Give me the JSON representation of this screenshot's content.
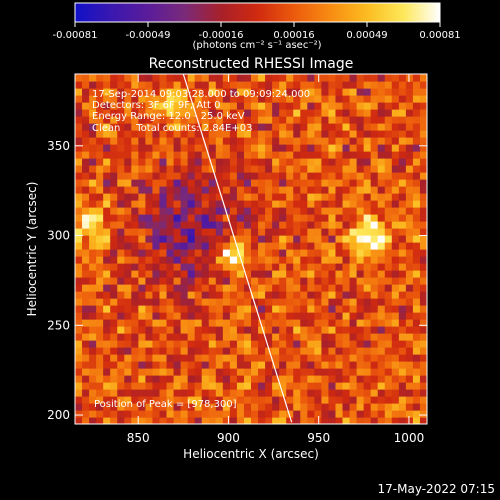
{
  "colorbar": {
    "tick_labels": [
      "-0.00081",
      "-0.00049",
      "-0.00016",
      "0.00016",
      "0.00049",
      "0.00081"
    ],
    "range": [
      -0.00081,
      0.00081
    ],
    "unit_label": "(photons cm⁻² s⁻¹ asec⁻²)",
    "colors": [
      "#1010c8",
      "#3a18b0",
      "#5a1c9a",
      "#7a2a7a",
      "#a8202a",
      "#d02a10",
      "#ec5a0c",
      "#f88c12",
      "#fcbc20",
      "#fde85a",
      "#ffffff"
    ]
  },
  "chart_data": {
    "type": "heatmap",
    "title": "Reconstructed RHESSI Image",
    "xlabel": "Heliocentric X (arcsec)",
    "ylabel": "Heliocentric Y (arcsec)",
    "xlim": [
      815,
      1010
    ],
    "ylim": [
      195,
      390
    ],
    "x_ticks": [
      850,
      900,
      950,
      1000
    ],
    "y_ticks": [
      200,
      250,
      300,
      350
    ],
    "x_tick_labels": [
      "850",
      "900",
      "950",
      "1000"
    ],
    "y_tick_labels": [
      "200",
      "250",
      "300",
      "350"
    ],
    "colormap": "rhessi-signed (blue-purple-red-yellow-white)",
    "sources": [
      {
        "x": 978,
        "y": 300,
        "peak": 0.00081
      },
      {
        "x": 903,
        "y": 290,
        "peak": 0.00075
      },
      {
        "x": 825,
        "y": 305,
        "peak": 0.0006
      },
      {
        "x": 870,
        "y": 370,
        "peak": 0.0004
      }
    ],
    "limb_line": [
      [
        875,
        390
      ],
      [
        935,
        196
      ]
    ],
    "info_lines": [
      "17-Sep-2014 09:03:28.000 to 09:09:24.000",
      "Detectors: 3F 6F 9F, Att 0",
      "Energy Range: 12.0 - 25.0 keV",
      "Clean     Total counts: 2.84E+03"
    ],
    "peak_label": "Position of Peak = [978,300]"
  },
  "footer": {
    "timestamp": "17-May-2022 07:15"
  }
}
